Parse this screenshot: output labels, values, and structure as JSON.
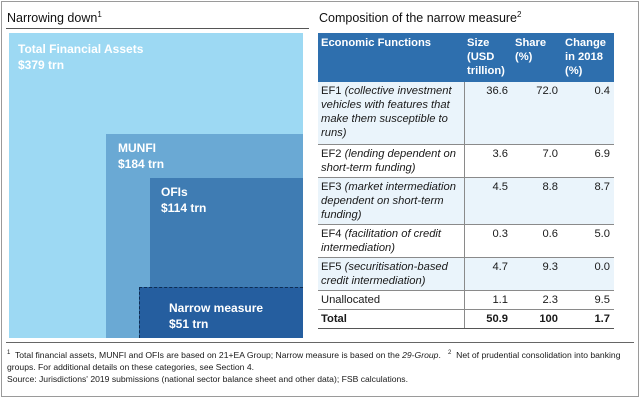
{
  "left_title": "Narrowing down",
  "left_title_sup": "1",
  "right_title": "Composition of the narrow measure",
  "right_title_sup": "2",
  "boxes": [
    {
      "name": "Total Financial Assets",
      "value": "$379 trn"
    },
    {
      "name": "MUNFI",
      "value": "$184 trn"
    },
    {
      "name": "OFIs",
      "value": "$114 trn"
    },
    {
      "name": "Narrow measure",
      "value": "$51 trn"
    }
  ],
  "table": {
    "headers": [
      "Economic Functions",
      "Size (USD trillion)",
      "Share (%)",
      "Change in 2018 (%)"
    ],
    "rows": [
      {
        "code": "EF1",
        "desc": "(collective investment vehicles with features that make them susceptible to runs)",
        "size": "36.6",
        "share": "72.0",
        "change": "0.4"
      },
      {
        "code": "EF2",
        "desc": "(lending dependent on short-term funding)",
        "size": "3.6",
        "share": "7.0",
        "change": "6.9"
      },
      {
        "code": "EF3",
        "desc": "(market intermediation dependent on short-term funding)",
        "size": "4.5",
        "share": "8.8",
        "change": "8.7"
      },
      {
        "code": "EF4",
        "desc": "(facilitation of credit intermediation)",
        "size": "0.3",
        "share": "0.6",
        "change": "5.0"
      },
      {
        "code": "EF5",
        "desc": "(securitisation-based credit intermediation)",
        "size": "4.7",
        "share": "9.3",
        "change": "0.0"
      }
    ],
    "unallocated": {
      "label": "Unallocated",
      "size": "1.1",
      "share": "2.3",
      "change": "9.5"
    },
    "total": {
      "label": "Total",
      "size": "50.9",
      "share": "100",
      "change": "1.7"
    }
  },
  "notes": {
    "n1_mark": "1",
    "n1_text_a": "Total financial assets, MUNFI and OFIs are based on 21+EA Group; Narrow measure is based on the",
    "n1_text_it": "29-Group",
    "n1_text_b": ".",
    "n2_mark": "2",
    "n2_text": "Net of prudential consolidation into banking groups.  For additional details on these categories, see Section 4.",
    "source": "Source: Jurisdictions' 2019 submissions (national sector balance sheet and other data); FSB calculations."
  }
}
